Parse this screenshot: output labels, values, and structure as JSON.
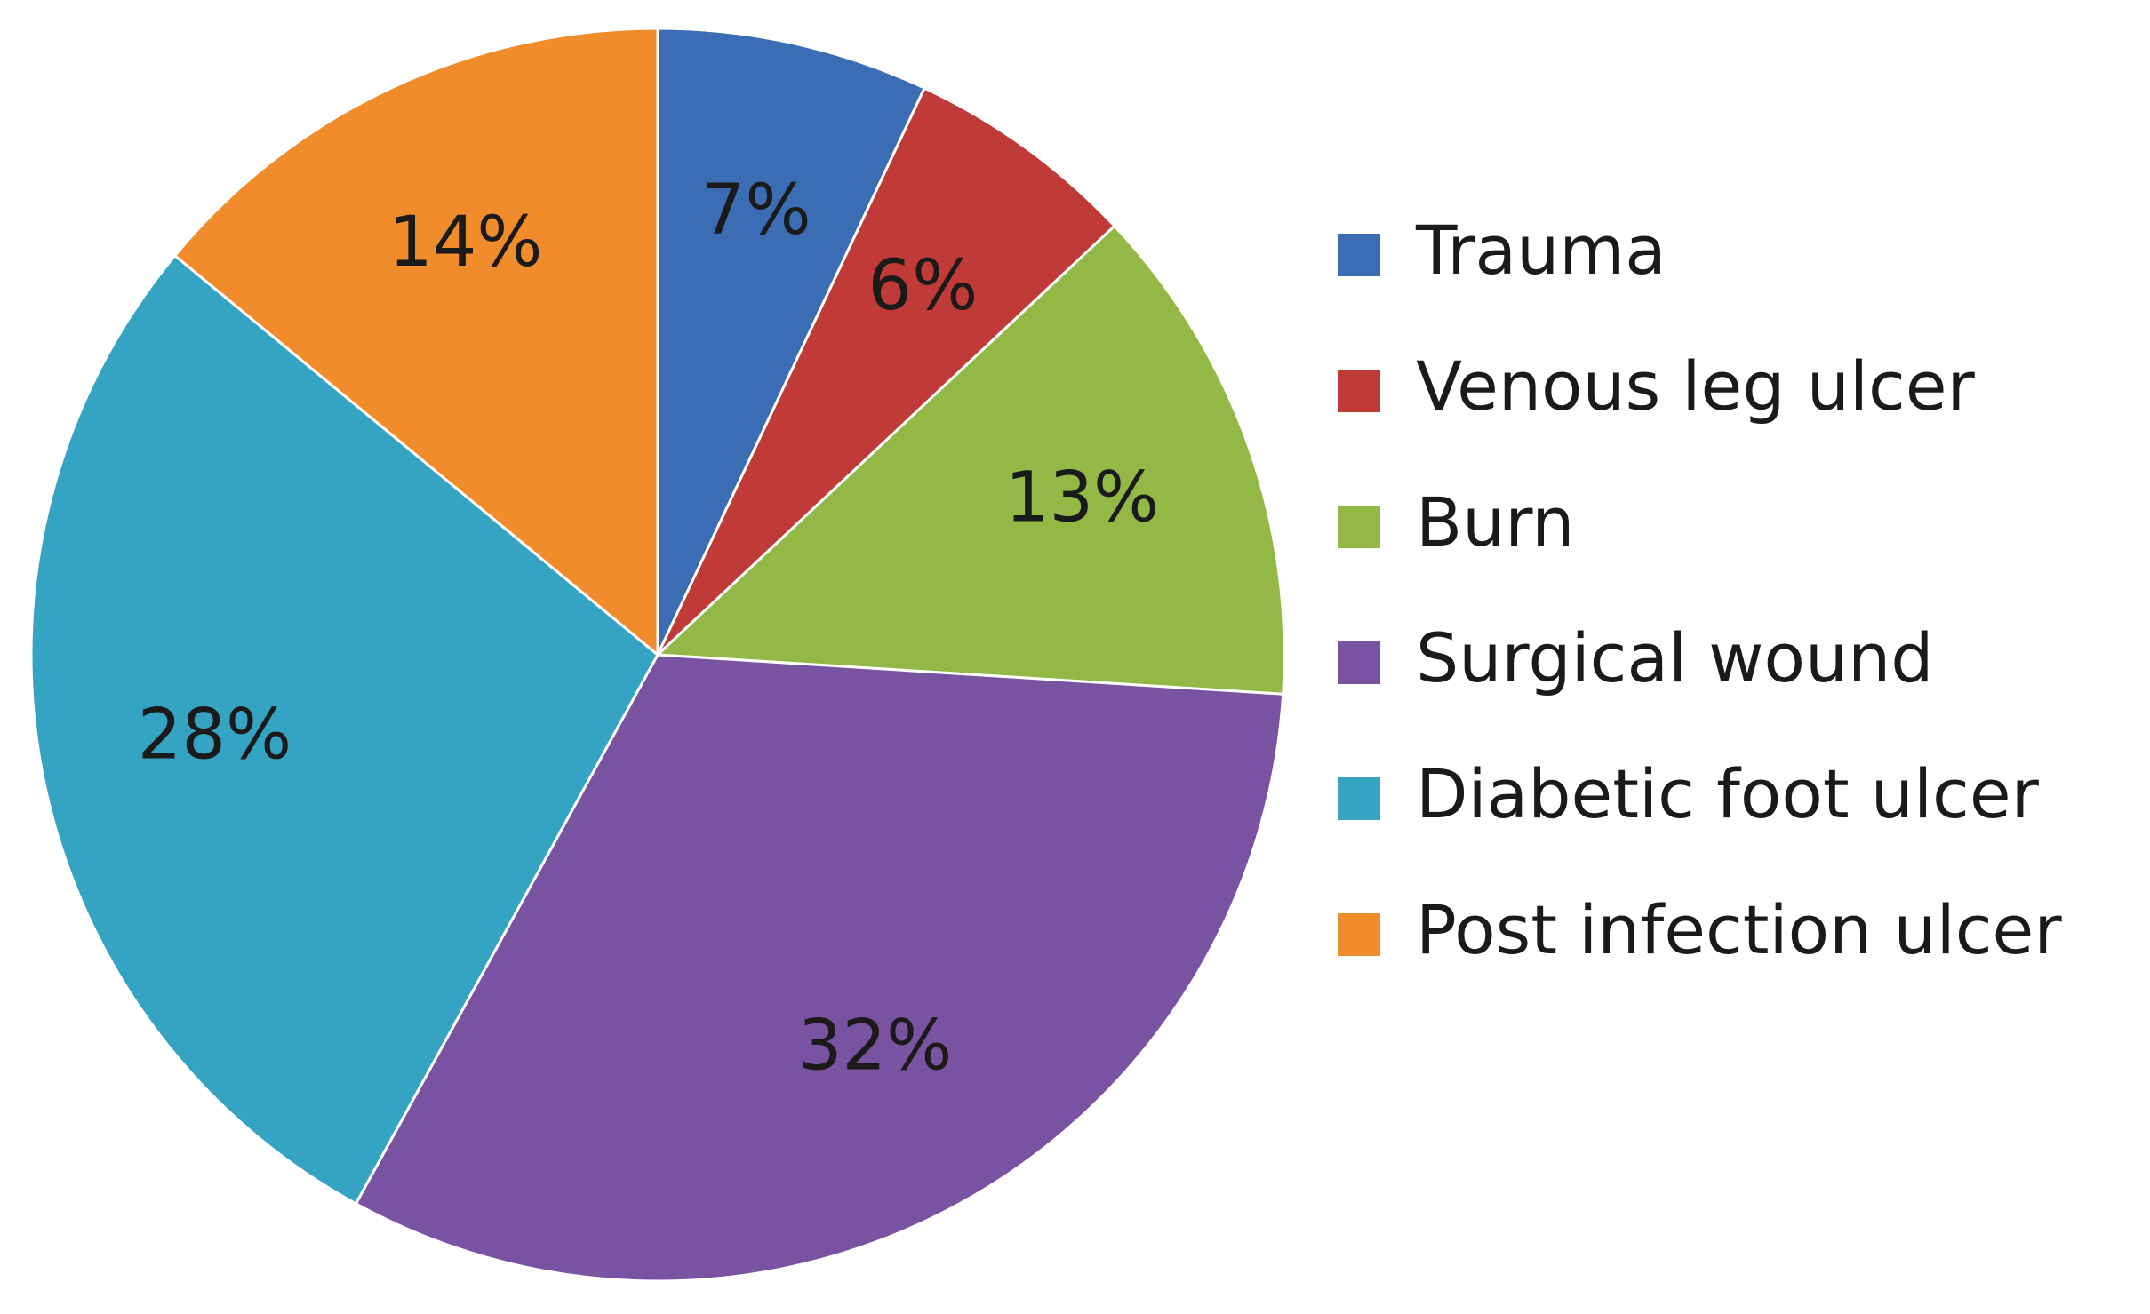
{
  "chart_data": {
    "type": "pie",
    "categories": [
      "Trauma",
      "Venous leg ulcer",
      "Burn",
      "Surgical wound",
      "Diabetic foot ulcer",
      "Post infection ulcer"
    ],
    "values": [
      7,
      6,
      13,
      32,
      28,
      14
    ],
    "value_labels": [
      "7%",
      "6%",
      "13%",
      "32%",
      "28%",
      "14%"
    ],
    "colors": [
      "#3a6db4",
      "#c03a37",
      "#93b846",
      "#7953a2",
      "#35a4c3",
      "#f08c2b"
    ],
    "legend": "right"
  }
}
